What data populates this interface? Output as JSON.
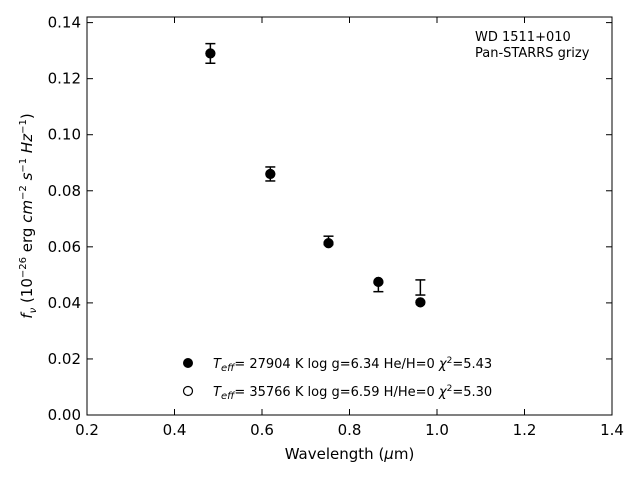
{
  "chart_data": {
    "type": "scatter",
    "xlabel": "Wavelength (μm)",
    "ylabel": "f_ν (10^-26 erg cm^-2 s^-1 Hz^-1)",
    "xlim": [
      0.2,
      1.4
    ],
    "ylim": [
      0.0,
      0.142
    ],
    "x_ticks": [
      0.2,
      0.4,
      0.6,
      0.8,
      1.0,
      1.2,
      1.4
    ],
    "x_tick_labels": [
      "0.2",
      "0.4",
      "0.6",
      "0.8",
      "1.0",
      "1.2",
      "1.4"
    ],
    "y_ticks": [
      0.0,
      0.02,
      0.04,
      0.06,
      0.08,
      0.1,
      0.12,
      0.14
    ],
    "y_tick_labels": [
      "0.00",
      "0.02",
      "0.04",
      "0.06",
      "0.08",
      "0.10",
      "0.12",
      "0.14"
    ],
    "grid": false,
    "legend_position": "lower-center",
    "annotation": [
      "WD 1511+010",
      "Pan-STARRS grizy"
    ],
    "observed": {
      "x": [
        0.482,
        0.619,
        0.752,
        0.866,
        0.962
      ],
      "y_upper": [
        0.1325,
        0.0885,
        0.0638,
        0.0472,
        0.0482
      ],
      "y_lower": [
        0.1255,
        0.0835,
        0.0608,
        0.044,
        0.0428
      ]
    },
    "series": [
      {
        "name": "T_eff= 27904 K  log g=6.34  He/H=0  χ²=5.43",
        "marker": "filled-circle",
        "color": "#000000",
        "x": [
          0.482,
          0.619,
          0.752,
          0.866,
          0.962
        ],
        "y": [
          0.129,
          0.086,
          0.0613,
          0.0475,
          0.0402
        ]
      },
      {
        "name": "T_eff= 35766 K  log g=6.59  H/He=0  χ²=5.30",
        "marker": "open-circle",
        "color": "#000000",
        "x": [
          0.482,
          0.619,
          0.752,
          0.866,
          0.962
        ],
        "y": [
          0.129,
          0.086,
          0.0613,
          0.0475,
          0.0402
        ]
      }
    ]
  }
}
